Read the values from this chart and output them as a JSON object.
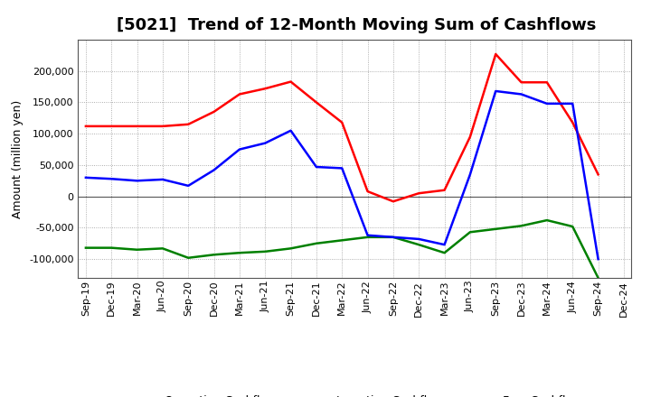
{
  "title": "[5021]  Trend of 12-Month Moving Sum of Cashflows",
  "ylabel": "Amount (million yen)",
  "x_labels": [
    "Sep-19",
    "Dec-19",
    "Mar-20",
    "Jun-20",
    "Sep-20",
    "Dec-20",
    "Mar-21",
    "Jun-21",
    "Sep-21",
    "Dec-21",
    "Mar-22",
    "Jun-22",
    "Sep-22",
    "Dec-22",
    "Mar-23",
    "Jun-23",
    "Sep-23",
    "Dec-23",
    "Mar-24",
    "Jun-24",
    "Sep-24",
    "Dec-24"
  ],
  "operating": [
    112000,
    112000,
    112000,
    112000,
    115000,
    135000,
    163000,
    172000,
    183000,
    150000,
    118000,
    8000,
    -8000,
    5000,
    10000,
    95000,
    227000,
    182000,
    182000,
    118000,
    35000,
    null
  ],
  "investing": [
    -82000,
    -82000,
    -85000,
    -83000,
    -98000,
    -93000,
    -90000,
    -88000,
    -83000,
    -75000,
    -70000,
    -65000,
    -65000,
    -77000,
    -90000,
    -57000,
    -52000,
    -47000,
    -38000,
    -48000,
    -130000,
    null
  ],
  "free": [
    30000,
    28000,
    25000,
    27000,
    17000,
    42000,
    75000,
    85000,
    105000,
    47000,
    45000,
    -62000,
    -65000,
    -68000,
    -77000,
    35000,
    168000,
    163000,
    148000,
    148000,
    -100000,
    null
  ],
  "operating_color": "#ff0000",
  "investing_color": "#008000",
  "free_color": "#0000ff",
  "ylim": [
    -130000,
    250000
  ],
  "yticks": [
    -100000,
    -50000,
    0,
    50000,
    100000,
    150000,
    200000
  ],
  "background_color": "#ffffff",
  "grid_color": "#999999",
  "line_width": 1.8,
  "title_fontsize": 13,
  "legend_fontsize": 9,
  "tick_fontsize": 8,
  "ylabel_fontsize": 9
}
